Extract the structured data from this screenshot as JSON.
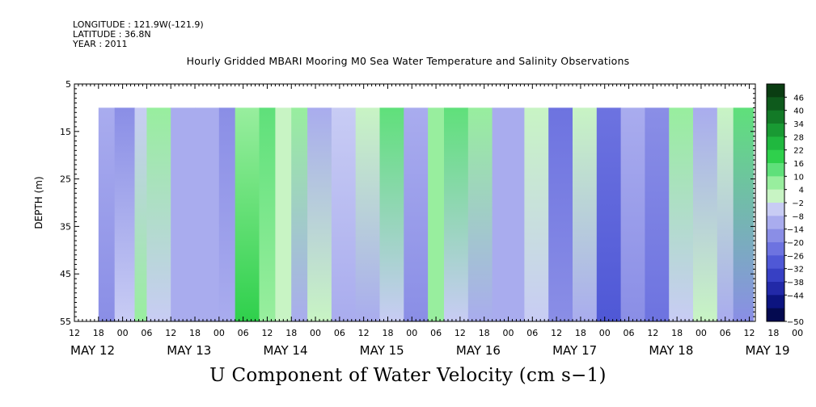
{
  "header": {
    "longitude": "LONGITUDE : 121.9W(-121.9)",
    "latitude": "LATITUDE : 36.8N",
    "year": "YEAR : 2011",
    "title": "Hourly Gridded MBARI Mooring M0 Sea Water Temperature and Salinity Observations"
  },
  "chart_data": {
    "type": "heatmap",
    "title": "U Component of Water Velocity (cm s−1)",
    "ylabel": "DEPTH (m)",
    "ylim": [
      55,
      5
    ],
    "y_ticks": [
      "5",
      "15",
      "25",
      "35",
      "45",
      "55"
    ],
    "data_depth_range": [
      10,
      55
    ],
    "x_hour_labels": [
      "12",
      "18",
      "00",
      "06",
      "12",
      "18",
      "00",
      "06",
      "12",
      "18",
      "00",
      "06",
      "12",
      "18",
      "00",
      "06",
      "12",
      "18",
      "00",
      "06",
      "12",
      "18",
      "00",
      "06",
      "12",
      "18",
      "00",
      "06",
      "12",
      "18",
      "00",
      "06",
      "12"
    ],
    "x_date_labels": [
      "MAY 12",
      "MAY 13",
      "MAY 14",
      "MAY 15",
      "MAY 16",
      "MAY 17",
      "MAY 18",
      "MAY 19"
    ],
    "colorbar": {
      "labels": [
        "46",
        "40",
        "34",
        "28",
        "22",
        "16",
        "10",
        "4",
        "−2",
        "−8",
        "−14",
        "−20",
        "−26",
        "−32",
        "−38",
        "−44",
        "−50"
      ],
      "colors": [
        "#0a3d12",
        "#0e5a1c",
        "#137a27",
        "#199a33",
        "#20b83f",
        "#2fd04c",
        "#5fe07a",
        "#98ee9e",
        "#c8f4c4",
        "#c8ccf4",
        "#a9acee",
        "#8a8ee6",
        "#6d73e0",
        "#4f58d6",
        "#3740c4",
        "#2229a8",
        "#0c1480",
        "#040a50"
      ]
    },
    "columns": [
      {
        "start": "May 12 18:00",
        "end": "May 12 22:00",
        "surface": -8,
        "bottom": -12
      },
      {
        "start": "May 12 22:00",
        "end": "May 13 03:00",
        "surface": -14,
        "bottom": -4
      },
      {
        "start": "May 13 03:00",
        "end": "May 13 06:00",
        "surface": -4,
        "bottom": 6
      },
      {
        "start": "May 13 06:00",
        "end": "May 13 12:00",
        "surface": 8,
        "bottom": -2
      },
      {
        "start": "May 13 12:00",
        "end": "May 13 18:00",
        "surface": -6,
        "bottom": -10
      },
      {
        "start": "May 13 18:00",
        "end": "May 14 00:00",
        "surface": -10,
        "bottom": -8
      },
      {
        "start": "May 14 00:00",
        "end": "May 14 04:00",
        "surface": -12,
        "bottom": -6
      },
      {
        "start": "May 14 04:00",
        "end": "May 14 10:00",
        "surface": 10,
        "bottom": 18
      },
      {
        "start": "May 14 10:00",
        "end": "May 14 14:00",
        "surface": 14,
        "bottom": 8
      },
      {
        "start": "May 14 14:00",
        "end": "May 14 18:00",
        "surface": 4,
        "bottom": 4
      },
      {
        "start": "May 14 18:00",
        "end": "May 14 22:00",
        "surface": 6,
        "bottom": -6
      },
      {
        "start": "May 14 22:00",
        "end": "May 15 04:00",
        "surface": -10,
        "bottom": 2
      },
      {
        "start": "May 15 04:00",
        "end": "May 15 10:00",
        "surface": -4,
        "bottom": -8
      },
      {
        "start": "May 15 10:00",
        "end": "May 15 16:00",
        "surface": 2,
        "bottom": -6
      },
      {
        "start": "May 15 16:00",
        "end": "May 15 22:00",
        "surface": 16,
        "bottom": -4
      },
      {
        "start": "May 15 22:00",
        "end": "May 16 04:00",
        "surface": -8,
        "bottom": -14
      },
      {
        "start": "May 16 04:00",
        "end": "May 16 08:00",
        "surface": 6,
        "bottom": 10
      },
      {
        "start": "May 16 08:00",
        "end": "May 16 14:00",
        "surface": 12,
        "bottom": -4
      },
      {
        "start": "May 16 14:00",
        "end": "May 16 20:00",
        "surface": 6,
        "bottom": -6
      },
      {
        "start": "May 16 20:00",
        "end": "May 17 04:00",
        "surface": -8,
        "bottom": -10
      },
      {
        "start": "May 17 04:00",
        "end": "May 17 10:00",
        "surface": 4,
        "bottom": -4
      },
      {
        "start": "May 17 10:00",
        "end": "May 17 16:00",
        "surface": -18,
        "bottom": -14
      },
      {
        "start": "May 17 16:00",
        "end": "May 17 22:00",
        "surface": 2,
        "bottom": -10
      },
      {
        "start": "May 17 22:00",
        "end": "May 18 04:00",
        "surface": -20,
        "bottom": -24
      },
      {
        "start": "May 18 04:00",
        "end": "May 18 10:00",
        "surface": -8,
        "bottom": -12
      },
      {
        "start": "May 18 10:00",
        "end": "May 18 16:00",
        "surface": -14,
        "bottom": -22
      },
      {
        "start": "May 18 16:00",
        "end": "May 18 22:00",
        "surface": 6,
        "bottom": -4
      },
      {
        "start": "May 18 22:00",
        "end": "May 19 04:00",
        "surface": -6,
        "bottom": 2
      },
      {
        "start": "May 19 04:00",
        "end": "May 19 08:00",
        "surface": 4,
        "bottom": -10
      },
      {
        "start": "May 19 08:00",
        "end": "May 19 13:00",
        "surface": 14,
        "bottom": -12
      }
    ]
  }
}
